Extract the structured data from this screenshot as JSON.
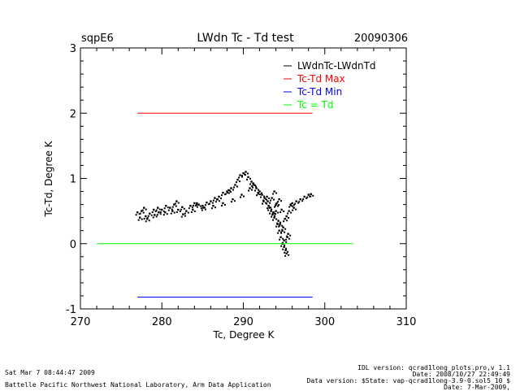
{
  "header": {
    "site": "sqpE6",
    "title": "LWdn Tc - Td test",
    "date": "20090306"
  },
  "footer": {
    "timestamp": "Sat Mar  7 08:44:47 2009",
    "org": "Battelle Pacific Northwest National Laboratory, Arm Data Application",
    "idl_version": "IDL version: qcrad1long_plots.pro,v 1.1",
    "date_line": "Date: 2008/10/27 22:49:49",
    "data_version": "Data version: $State: vap-qcrad1long-3.9-0.sol5_10 $",
    "run_date": "Date: 7-Mar-2009,"
  },
  "chart_data": {
    "type": "scatter",
    "title": "LWdn Tc - Td test",
    "xlabel": "Tc, Degree K",
    "ylabel": "Tc-Td, Degree K",
    "xlim": [
      270,
      310
    ],
    "ylim": [
      -1,
      3
    ],
    "xticks": [
      "270",
      "280",
      "290",
      "300",
      "310"
    ],
    "yticks": [
      "-1",
      "0",
      "1",
      "2",
      "3"
    ],
    "grid": false,
    "legend_position": "top-right",
    "series": [
      {
        "name": "LWdnTc-LWdnTd",
        "kind": "points",
        "color": "#000000",
        "x": [
          277.0,
          277.5,
          278.0,
          278.5,
          279.0,
          279.5,
          280.0,
          280.5,
          281.0,
          281.5,
          282.0,
          282.5,
          283.0,
          283.5,
          284.0,
          284.5,
          285.0,
          285.5,
          286.0,
          286.5,
          287.0,
          287.5,
          288.0,
          288.5,
          289.0,
          289.3,
          289.6,
          290.0,
          290.3,
          290.6,
          291.0,
          291.3,
          291.6,
          292.0,
          292.3,
          292.6,
          293.0,
          293.2,
          293.4,
          293.6,
          293.8,
          294.0,
          294.2,
          294.4,
          294.6,
          294.8,
          295.0,
          295.2,
          295.4,
          295.6,
          295.8,
          296.0,
          296.5,
          297.0,
          297.5,
          298.0,
          298.3,
          277.3,
          278.2,
          279.1,
          280.4,
          281.3,
          282.6,
          283.8,
          285.1,
          286.3,
          287.5,
          288.7,
          289.8,
          290.8,
          291.8,
          292.5,
          293.1,
          293.7,
          294.3,
          294.9,
          295.5,
          296.2,
          293.5,
          294.1,
          294.7,
          295.3,
          294.5,
          295.0,
          294.0,
          294.8,
          295.3,
          293.8,
          294.4,
          295.1,
          277.8,
          279.6,
          281.8,
          284.3,
          286.8,
          288.2,
          291.2,
          292.9
        ],
        "y": [
          0.48,
          0.5,
          0.42,
          0.46,
          0.52,
          0.55,
          0.52,
          0.58,
          0.55,
          0.6,
          0.52,
          0.56,
          0.5,
          0.58,
          0.62,
          0.6,
          0.58,
          0.63,
          0.65,
          0.7,
          0.72,
          0.78,
          0.8,
          0.85,
          0.9,
          0.98,
          1.05,
          1.08,
          1.1,
          1.02,
          0.95,
          0.9,
          0.85,
          0.8,
          0.75,
          0.7,
          0.65,
          0.55,
          0.5,
          0.45,
          0.4,
          0.6,
          0.3,
          0.2,
          0.1,
          0.0,
          -0.05,
          -0.1,
          0.1,
          0.5,
          0.6,
          0.62,
          0.65,
          0.68,
          0.72,
          0.75,
          0.76,
          0.4,
          0.38,
          0.44,
          0.48,
          0.5,
          0.45,
          0.52,
          0.55,
          0.58,
          0.62,
          0.68,
          0.75,
          0.85,
          0.78,
          0.65,
          0.58,
          0.48,
          0.35,
          0.25,
          0.15,
          0.55,
          0.7,
          0.62,
          0.52,
          0.42,
          0.3,
          0.05,
          0.5,
          0.2,
          -0.15,
          0.8,
          0.68,
          0.38,
          0.55,
          0.48,
          0.65,
          0.62,
          0.68,
          0.82,
          0.92,
          0.72
        ]
      },
      {
        "name": "Tc-Td Max",
        "kind": "line",
        "color": "#ff0000",
        "x": [
          277,
          298.5
        ],
        "y": [
          2.0,
          2.0
        ]
      },
      {
        "name": "Tc-Td Min",
        "kind": "line",
        "color": "#0000ff",
        "x": [
          277,
          298.5
        ],
        "y": [
          -0.82,
          -0.82
        ]
      },
      {
        "name": "Tc = Td",
        "kind": "line",
        "color": "#00ff00",
        "x": [
          272,
          303.5
        ],
        "y": [
          0.0,
          0.0
        ]
      }
    ]
  }
}
